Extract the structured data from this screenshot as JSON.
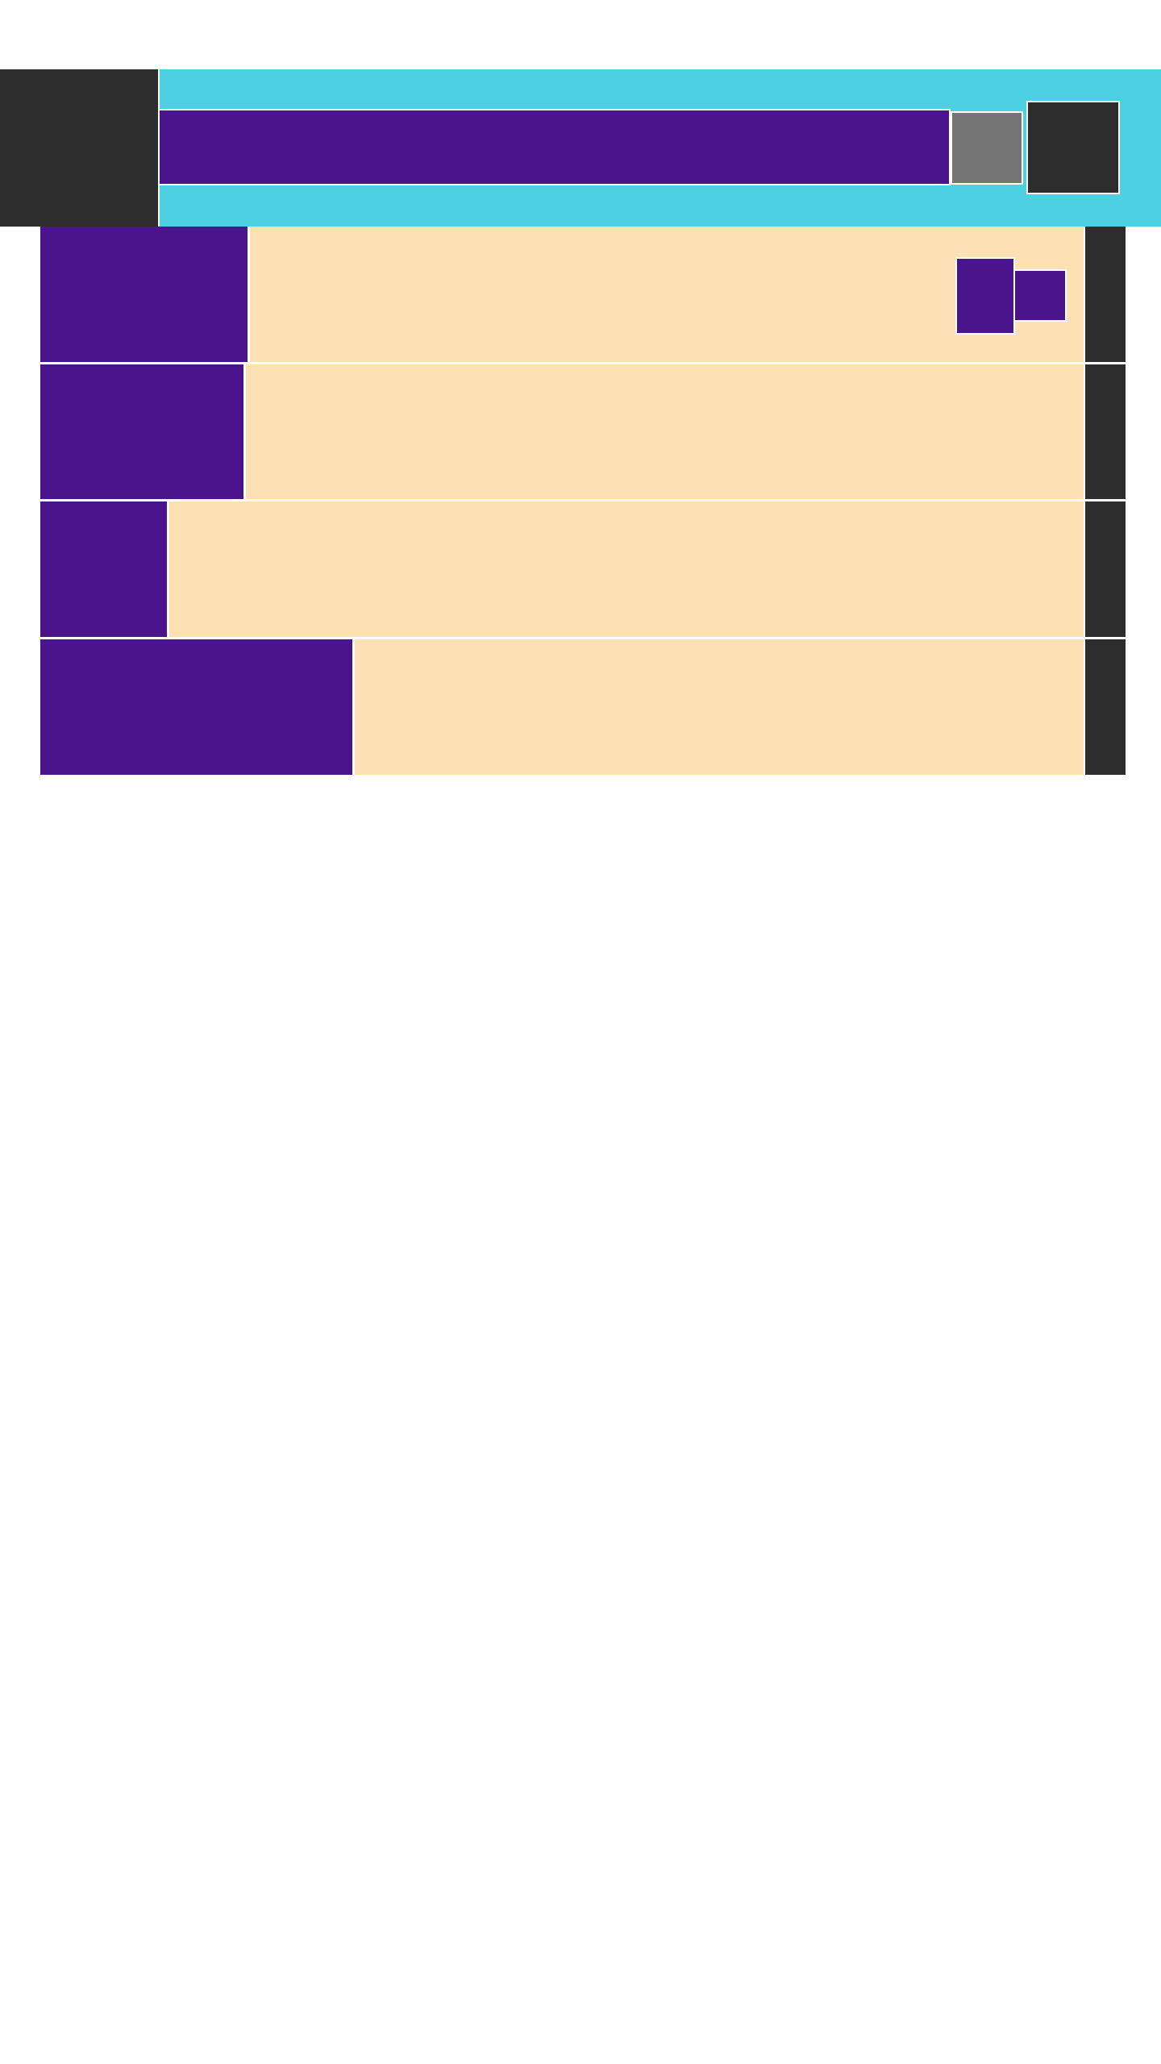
{
  "colors": {
    "page_background": "#fefefe",
    "header_bar": "#4dd0e1",
    "dark_block": "#2d2d2d",
    "primary_block": "#4a148c",
    "secondary_block": "#757575",
    "row_background": "#fde0b4",
    "divider": "#ffffff"
  },
  "header": {
    "logo_block": {},
    "search_field": {
      "value": ""
    },
    "search_button": {},
    "menu_button": {}
  },
  "list": {
    "rows": [
      {
        "label": ""
      },
      {
        "label": ""
      },
      {
        "label": ""
      },
      {
        "label": ""
      }
    ]
  }
}
